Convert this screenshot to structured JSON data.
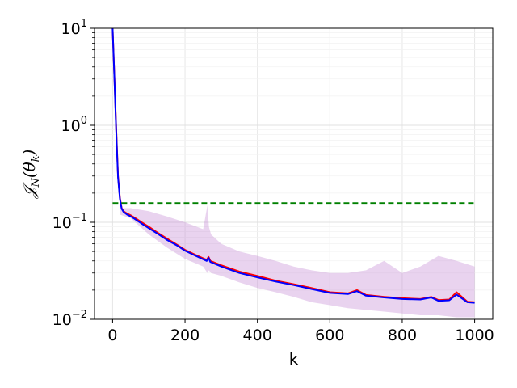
{
  "chart_data": {
    "type": "line",
    "xlabel": "k",
    "ylabel": "𝒥N(θk)",
    "ylabel_parts": {
      "main": "𝒥",
      "sub1": "N",
      "mid": "(θ",
      "sub2": "k",
      "end": ")"
    },
    "xlim": [
      -50,
      1050
    ],
    "ylim": [
      0.01,
      10
    ],
    "yscale": "log",
    "grid": true,
    "xticks": [
      0,
      200,
      400,
      600,
      800,
      1000
    ],
    "xtick_labels": [
      "0",
      "200",
      "400",
      "600",
      "800",
      "1000"
    ],
    "yticks": [
      0.01,
      0.1,
      1,
      10
    ],
    "ytick_labels": [
      {
        "base": "10",
        "exp": "−2"
      },
      {
        "base": "10",
        "exp": "−1"
      },
      {
        "base": "10",
        "exp": "0"
      },
      {
        "base": "10",
        "exp": "1"
      }
    ],
    "series": [
      {
        "style": "solid",
        "color": "#ff0000",
        "x": [
          0,
          5,
          10,
          15,
          20,
          25,
          30,
          40,
          50,
          60,
          70,
          80,
          100,
          120,
          150,
          180,
          200,
          230,
          260,
          265,
          270,
          300,
          350,
          400,
          450,
          500,
          550,
          600,
          650,
          675,
          700,
          750,
          800,
          850,
          880,
          900,
          930,
          950,
          980,
          1000
        ],
        "y": [
          10,
          3.0,
          0.9,
          0.3,
          0.18,
          0.14,
          0.13,
          0.123,
          0.118,
          0.112,
          0.106,
          0.1,
          0.09,
          0.08,
          0.068,
          0.058,
          0.052,
          0.046,
          0.041,
          0.044,
          0.04,
          0.036,
          0.031,
          0.028,
          0.025,
          0.023,
          0.021,
          0.019,
          0.0185,
          0.02,
          0.0178,
          0.017,
          0.0165,
          0.0162,
          0.017,
          0.0158,
          0.016,
          0.019,
          0.0152,
          0.015
        ]
      },
      {
        "style": "solid",
        "color": "#0000ff",
        "x": [
          0,
          5,
          10,
          15,
          20,
          25,
          30,
          40,
          50,
          60,
          70,
          80,
          100,
          120,
          150,
          180,
          200,
          230,
          260,
          265,
          270,
          300,
          350,
          400,
          450,
          500,
          550,
          600,
          650,
          675,
          700,
          750,
          800,
          850,
          880,
          900,
          930,
          950,
          980,
          1000
        ],
        "y": [
          10,
          2.9,
          0.85,
          0.29,
          0.175,
          0.138,
          0.128,
          0.12,
          0.115,
          0.109,
          0.103,
          0.097,
          0.087,
          0.078,
          0.066,
          0.057,
          0.051,
          0.045,
          0.04,
          0.043,
          0.039,
          0.035,
          0.03,
          0.027,
          0.0245,
          0.0225,
          0.0205,
          0.0187,
          0.0182,
          0.0195,
          0.0175,
          0.0168,
          0.0162,
          0.016,
          0.0168,
          0.0155,
          0.0157,
          0.018,
          0.015,
          0.0148
        ]
      },
      {
        "style": "dashed",
        "color": "#008000",
        "x": [
          0,
          1000
        ],
        "y": [
          0.158,
          0.158
        ]
      }
    ],
    "band": {
      "color": "#c080d0",
      "x": [
        20,
        50,
        100,
        150,
        200,
        250,
        262,
        266,
        272,
        300,
        350,
        400,
        450,
        500,
        550,
        600,
        650,
        700,
        750,
        800,
        850,
        900,
        950,
        1000
      ],
      "upper": [
        0.14,
        0.14,
        0.13,
        0.115,
        0.1,
        0.085,
        0.15,
        0.09,
        0.075,
        0.06,
        0.05,
        0.045,
        0.04,
        0.035,
        0.032,
        0.03,
        0.03,
        0.032,
        0.04,
        0.03,
        0.035,
        0.045,
        0.04,
        0.035
      ],
      "lower": [
        0.12,
        0.11,
        0.075,
        0.055,
        0.042,
        0.035,
        0.03,
        0.032,
        0.03,
        0.028,
        0.024,
        0.021,
        0.019,
        0.017,
        0.015,
        0.014,
        0.013,
        0.0125,
        0.012,
        0.0115,
        0.011,
        0.011,
        0.0105,
        0.0105
      ]
    }
  }
}
